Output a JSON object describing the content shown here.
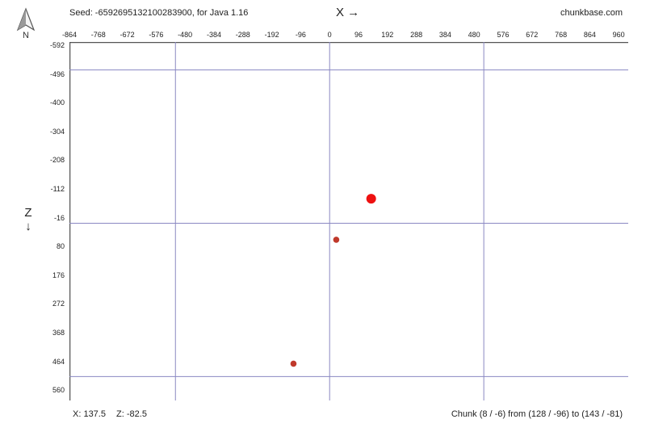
{
  "header": {
    "seed_text": "Seed: -6592695132100283900, for Java 1.16",
    "x_axis_label": "X →",
    "brand": "chunkbase.com"
  },
  "compass": {
    "icon": "north-arrow-icon",
    "label": "N"
  },
  "z_axis_label": "Z",
  "z_axis_arrow": "↓",
  "x_ticks": [
    "-864",
    "-768",
    "-672",
    "-576",
    "-480",
    "-384",
    "-288",
    "-192",
    "-96",
    "0",
    "96",
    "192",
    "288",
    "384",
    "480",
    "576",
    "672",
    "768",
    "864",
    "960"
  ],
  "z_ticks": [
    "-592",
    "-496",
    "-400",
    "-304",
    "-208",
    "-112",
    "-16",
    "80",
    "176",
    "272",
    "368",
    "464",
    "560"
  ],
  "map": {
    "x_range": [
      -864,
      960
    ],
    "z_range": [
      -592,
      560
    ],
    "region_lines_x": [
      -512,
      0,
      512
    ],
    "region_lines_z": [
      -512,
      0,
      512
    ],
    "grid_color": "#8a88c2",
    "markers": [
      {
        "x": 138,
        "z": -82,
        "size": "large",
        "color": "#ee1111",
        "highlighted": true
      },
      {
        "x": 22,
        "z": 55,
        "size": "small",
        "color": "#c0392b",
        "highlighted": false
      },
      {
        "x": -120,
        "z": 469,
        "size": "small",
        "color": "#c0392b",
        "highlighted": false
      }
    ]
  },
  "footer": {
    "cursor_x": "X: 137.5",
    "cursor_z": "Z: -82.5",
    "chunk_info": "Chunk (8 / -6) from (128 / -96) to (143 / -81)"
  }
}
